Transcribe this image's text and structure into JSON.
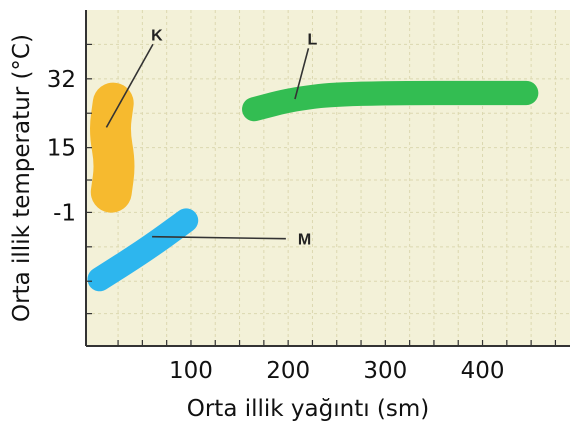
{
  "chart_data": {
    "type": "scatter",
    "title": "",
    "xlabel": "Orta illik yağıntı (sm)",
    "ylabel": "Orta illik temperatur (°C)",
    "xlim": [
      -8,
      490
    ],
    "ylim": [
      -34,
      49
    ],
    "x_ticks": [
      {
        "value": 100,
        "label": "100"
      },
      {
        "value": 200,
        "label": "200"
      },
      {
        "value": 300,
        "label": "300"
      },
      {
        "value": 400,
        "label": "400"
      }
    ],
    "y_ticks": [
      {
        "value": 32,
        "label": "32"
      },
      {
        "value": 15,
        "label": "15"
      },
      {
        "value": -1,
        "label": "-1"
      }
    ],
    "grid": true,
    "background_color": "#f3f1d8",
    "grid_color": "#dcd8b0",
    "regions": [
      {
        "label": "K",
        "color": "#f6ba2f",
        "centerline": [
          [
            20,
            26
          ],
          [
            16,
            19
          ],
          [
            22,
            11
          ],
          [
            18,
            4
          ]
        ],
        "width_mm": 11,
        "label_at": [
          65,
          43
        ],
        "leader_to": [
          13,
          20
        ]
      },
      {
        "label": "L",
        "color": "#33bd52",
        "centerline": [
          [
            165,
            24.5
          ],
          [
            205,
            27
          ],
          [
            260,
            28.5
          ],
          [
            445,
            28.5
          ]
        ],
        "width_mm": 6.5,
        "label_at": [
          225,
          42
        ],
        "leader_to": [
          207,
          27
        ]
      },
      {
        "label": "M",
        "color": "#2db6ee",
        "centerline": [
          [
            6,
            -17.5
          ],
          [
            55,
            -10
          ],
          [
            95,
            -3
          ]
        ],
        "width_mm": 6.5,
        "label_at": [
          210,
          -7.5
        ],
        "leader_to": [
          60,
          -7
        ]
      }
    ]
  }
}
